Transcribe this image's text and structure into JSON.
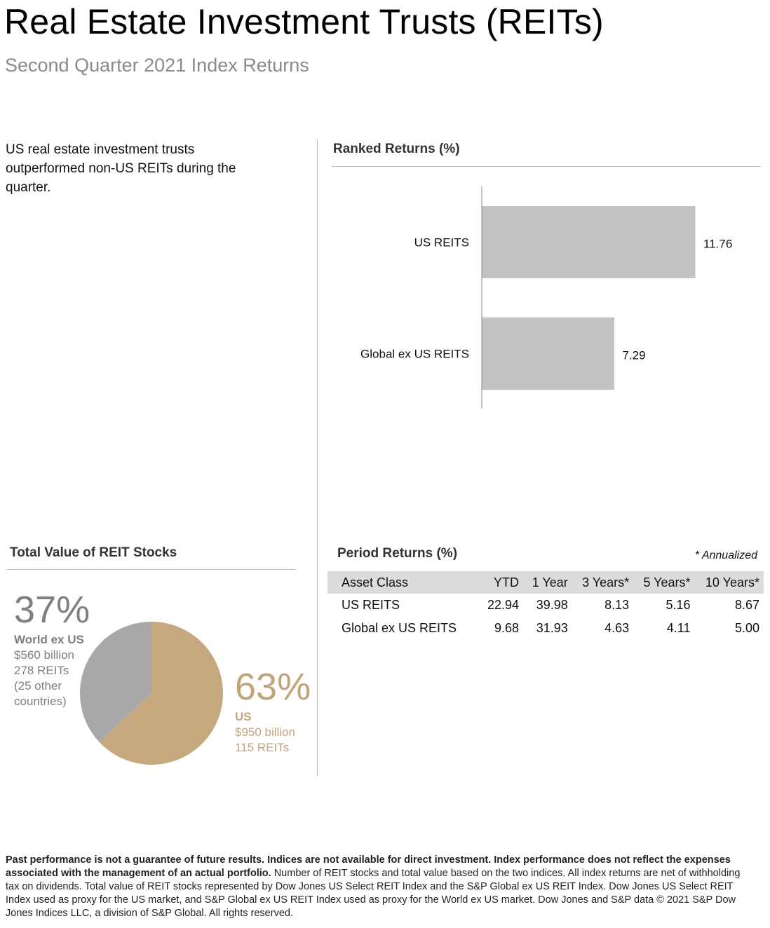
{
  "header": {
    "title": "Real Estate Investment Trusts (REITs)",
    "subtitle": "Second Quarter 2021 Index Returns"
  },
  "intro_text": "US real estate investment trusts outperformed non-US REITs during the quarter.",
  "ranked_returns": {
    "title": "Ranked Returns (%)"
  },
  "total_value": {
    "title": "Total Value of REIT Stocks",
    "world_ex_us": {
      "pct": "37%",
      "label": "World ex US",
      "value": "$560 billion",
      "count": "278 REITs",
      "note_line1": "(25 other",
      "note_line2": "countries)"
    },
    "us": {
      "pct": "63%",
      "label": "US",
      "value": "$950 billion",
      "count": "115 REITs"
    }
  },
  "period_returns": {
    "title": "Period Returns (%)",
    "annualized_note": "* Annualized",
    "columns": [
      "Asset Class",
      "YTD",
      "1 Year",
      "3 Years*",
      "5 Years*",
      "10 Years*"
    ],
    "rows": [
      [
        "US REITS",
        "22.94",
        "39.98",
        "8.13",
        "5.16",
        "8.67"
      ],
      [
        "Global ex US REITS",
        "9.68",
        "31.93",
        "4.63",
        "4.11",
        "5.00"
      ]
    ]
  },
  "disclaimer": {
    "bold": "Past performance is not a guarantee of future results. Indices are not available for direct investment. Index performance does not reflect the expenses associated with the management of an actual portfolio.",
    "normal": " Number of REIT stocks and total value based on the two indices. All index returns are net of withholding tax on dividends. Total value of REIT stocks represented by Dow Jones US Select REIT Index and the S&P Global ex US REIT Index. Dow Jones US Select REIT Index used as proxy for the US market, and S&P Global ex US REIT Index used as proxy for the World ex US market. Dow Jones and S&P data © 2021 S&P Dow Jones Indices LLC, a division of S&P Global. All rights reserved."
  },
  "colors": {
    "bar": "#c2c2c2",
    "pie_us": "#c6a87e",
    "pie_world": "#a8a8a8",
    "world_text": "#7f7f7f",
    "us_text": "#c2a47a"
  },
  "chart_data": [
    {
      "type": "bar",
      "orientation": "horizontal",
      "title": "Ranked Returns (%)",
      "categories": [
        "US REITS",
        "Global ex US REITS"
      ],
      "values": [
        11.76,
        7.29
      ],
      "value_labels": [
        "11.76",
        "7.29"
      ],
      "xlim": [
        0,
        13.5
      ],
      "grid": false
    },
    {
      "type": "pie",
      "title": "Total Value of REIT Stocks",
      "categories": [
        "US",
        "World ex US"
      ],
      "values": [
        63,
        37
      ]
    }
  ]
}
